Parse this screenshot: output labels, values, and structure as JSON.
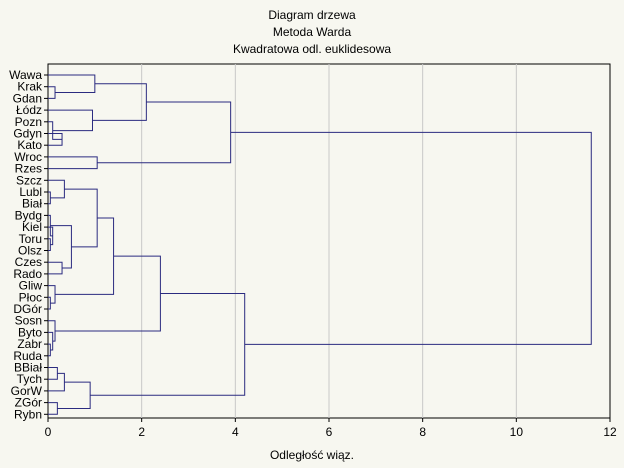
{
  "chart_data": {
    "type": "dendrogram",
    "orientation": "horizontal",
    "title": [
      "Diagram drzewa",
      "Metoda Warda",
      "Kwadratowa odl. euklidesowa"
    ],
    "xlabel": "Odległość wiąz.",
    "xlim": [
      0,
      12
    ],
    "xticks": [
      0,
      2,
      4,
      6,
      8,
      10,
      12
    ],
    "grid": true,
    "leaves": [
      "Wawa",
      "Krak",
      "Gdan",
      "Łódz",
      "Pozn",
      "Gdyn",
      "Kato",
      "Wroc",
      "Rzes",
      "Szcz",
      "Lubl",
      "Biał",
      "Bydg",
      "Kiel",
      "Toru",
      "Olsz",
      "Czes",
      "Rado",
      "Gliw",
      "Płoc",
      "DGór",
      "Sosn",
      "Byto",
      "Zabr",
      "Ruda",
      "BBiał",
      "Tych",
      "GorW",
      "ZGór",
      "Rybn"
    ],
    "merges": [
      {
        "id": "m1",
        "a": "Krak",
        "b": "Gdan",
        "height": 0.15
      },
      {
        "id": "m2",
        "a": "Wawa",
        "b": "m1",
        "height": 1.0
      },
      {
        "id": "m3",
        "a": "Gdyn",
        "b": "Kato",
        "height": 0.3
      },
      {
        "id": "m4",
        "a": "Pozn",
        "b": "m3",
        "height": 0.1
      },
      {
        "id": "m5",
        "a": "Łódz",
        "b": "m4",
        "height": 0.95
      },
      {
        "id": "m6",
        "a": "m2",
        "b": "m5",
        "height": 2.1
      },
      {
        "id": "m7",
        "a": "Wroc",
        "b": "Rzes",
        "height": 1.05
      },
      {
        "id": "m8",
        "a": "m6",
        "b": "m7",
        "height": 3.9
      },
      {
        "id": "m9",
        "a": "Lubl",
        "b": "Biał",
        "height": 0.05
      },
      {
        "id": "m10",
        "a": "Szcz",
        "b": "m9",
        "height": 0.35
      },
      {
        "id": "m11",
        "a": "Toru",
        "b": "Olsz",
        "height": 0.05
      },
      {
        "id": "m12",
        "a": "Kiel",
        "b": "m11",
        "height": 0.1
      },
      {
        "id": "m13",
        "a": "Bydg",
        "b": "m12",
        "height": 0.05
      },
      {
        "id": "m14",
        "a": "Czes",
        "b": "Rado",
        "height": 0.3
      },
      {
        "id": "m15",
        "a": "m13",
        "b": "m14",
        "height": 0.5
      },
      {
        "id": "m16",
        "a": "m10",
        "b": "m15",
        "height": 1.05
      },
      {
        "id": "m17",
        "a": "Płoc",
        "b": "DGór",
        "height": 0.05
      },
      {
        "id": "m18",
        "a": "Gliw",
        "b": "m17",
        "height": 0.15
      },
      {
        "id": "m19",
        "a": "m16",
        "b": "m18",
        "height": 1.4
      },
      {
        "id": "m20",
        "a": "Zabr",
        "b": "Ruda",
        "height": 0.05
      },
      {
        "id": "m21",
        "a": "Byto",
        "b": "m20",
        "height": 0.1
      },
      {
        "id": "m22",
        "a": "Sosn",
        "b": "m21",
        "height": 0.15
      },
      {
        "id": "m23",
        "a": "m19",
        "b": "m22",
        "height": 2.4
      },
      {
        "id": "m24",
        "a": "BBiał",
        "b": "Tych",
        "height": 0.2
      },
      {
        "id": "m25",
        "a": "m24",
        "b": "GorW",
        "height": 0.35
      },
      {
        "id": "m26",
        "a": "ZGór",
        "b": "Rybn",
        "height": 0.2
      },
      {
        "id": "m27",
        "a": "m25",
        "b": "m26",
        "height": 0.9
      },
      {
        "id": "m28",
        "a": "m23",
        "b": "m27",
        "height": 4.2
      },
      {
        "id": "m29",
        "a": "m8",
        "b": "m28",
        "height": 11.6
      }
    ],
    "colors": {
      "line": "#2b2b80",
      "grid": "#c8c8c8",
      "axis": "#000000",
      "background": "#f7f7f0"
    }
  }
}
